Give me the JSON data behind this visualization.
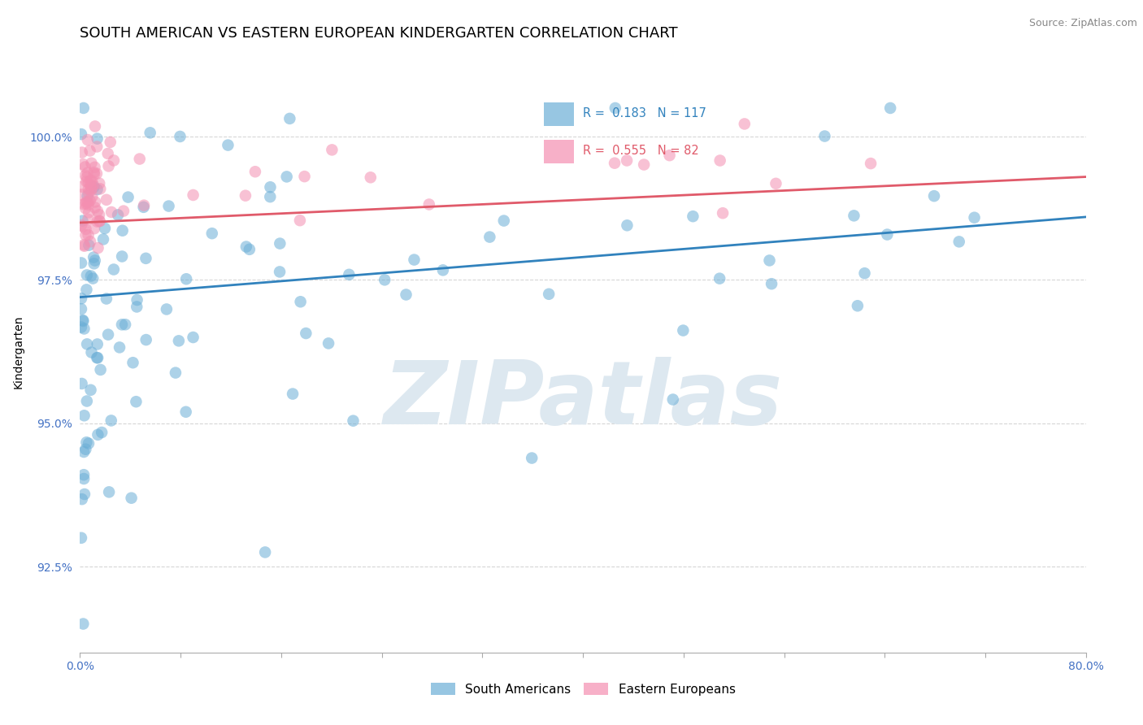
{
  "title": "SOUTH AMERICAN VS EASTERN EUROPEAN KINDERGARTEN CORRELATION CHART",
  "source_text": "Source: ZipAtlas.com",
  "ylabel": "Kindergarten",
  "xlim": [
    0.0,
    80.0
  ],
  "ylim": [
    91.0,
    101.5
  ],
  "yticks": [
    92.5,
    95.0,
    97.5,
    100.0
  ],
  "ytick_labels": [
    "92.5%",
    "95.0%",
    "97.5%",
    "100.0%"
  ],
  "xtick_positions": [
    0,
    8,
    16,
    24,
    32,
    40,
    48,
    56,
    64,
    72,
    80
  ],
  "xtick_labels": [
    "0.0%",
    "",
    "",
    "",
    "",
    "",
    "",
    "",
    "",
    "",
    "80.0%"
  ],
  "blue_R": 0.183,
  "blue_N": 117,
  "pink_R": 0.555,
  "pink_N": 82,
  "blue_color": "#6baed6",
  "pink_color": "#f48fb1",
  "blue_line_color": "#3182bd",
  "pink_line_color": "#e05a6a",
  "legend_label_blue": "South Americans",
  "legend_label_pink": "Eastern Europeans",
  "watermark": "ZIPatlas",
  "watermark_color": "#dde8f0",
  "title_fontsize": 13,
  "axis_label_fontsize": 10,
  "tick_fontsize": 10,
  "tick_color": "#4472c4",
  "blue_line_x0": 0,
  "blue_line_x1": 80,
  "blue_line_y0": 97.2,
  "blue_line_y1": 98.6,
  "pink_line_x0": 0,
  "pink_line_x1": 80,
  "pink_line_y0": 98.5,
  "pink_line_y1": 99.3
}
